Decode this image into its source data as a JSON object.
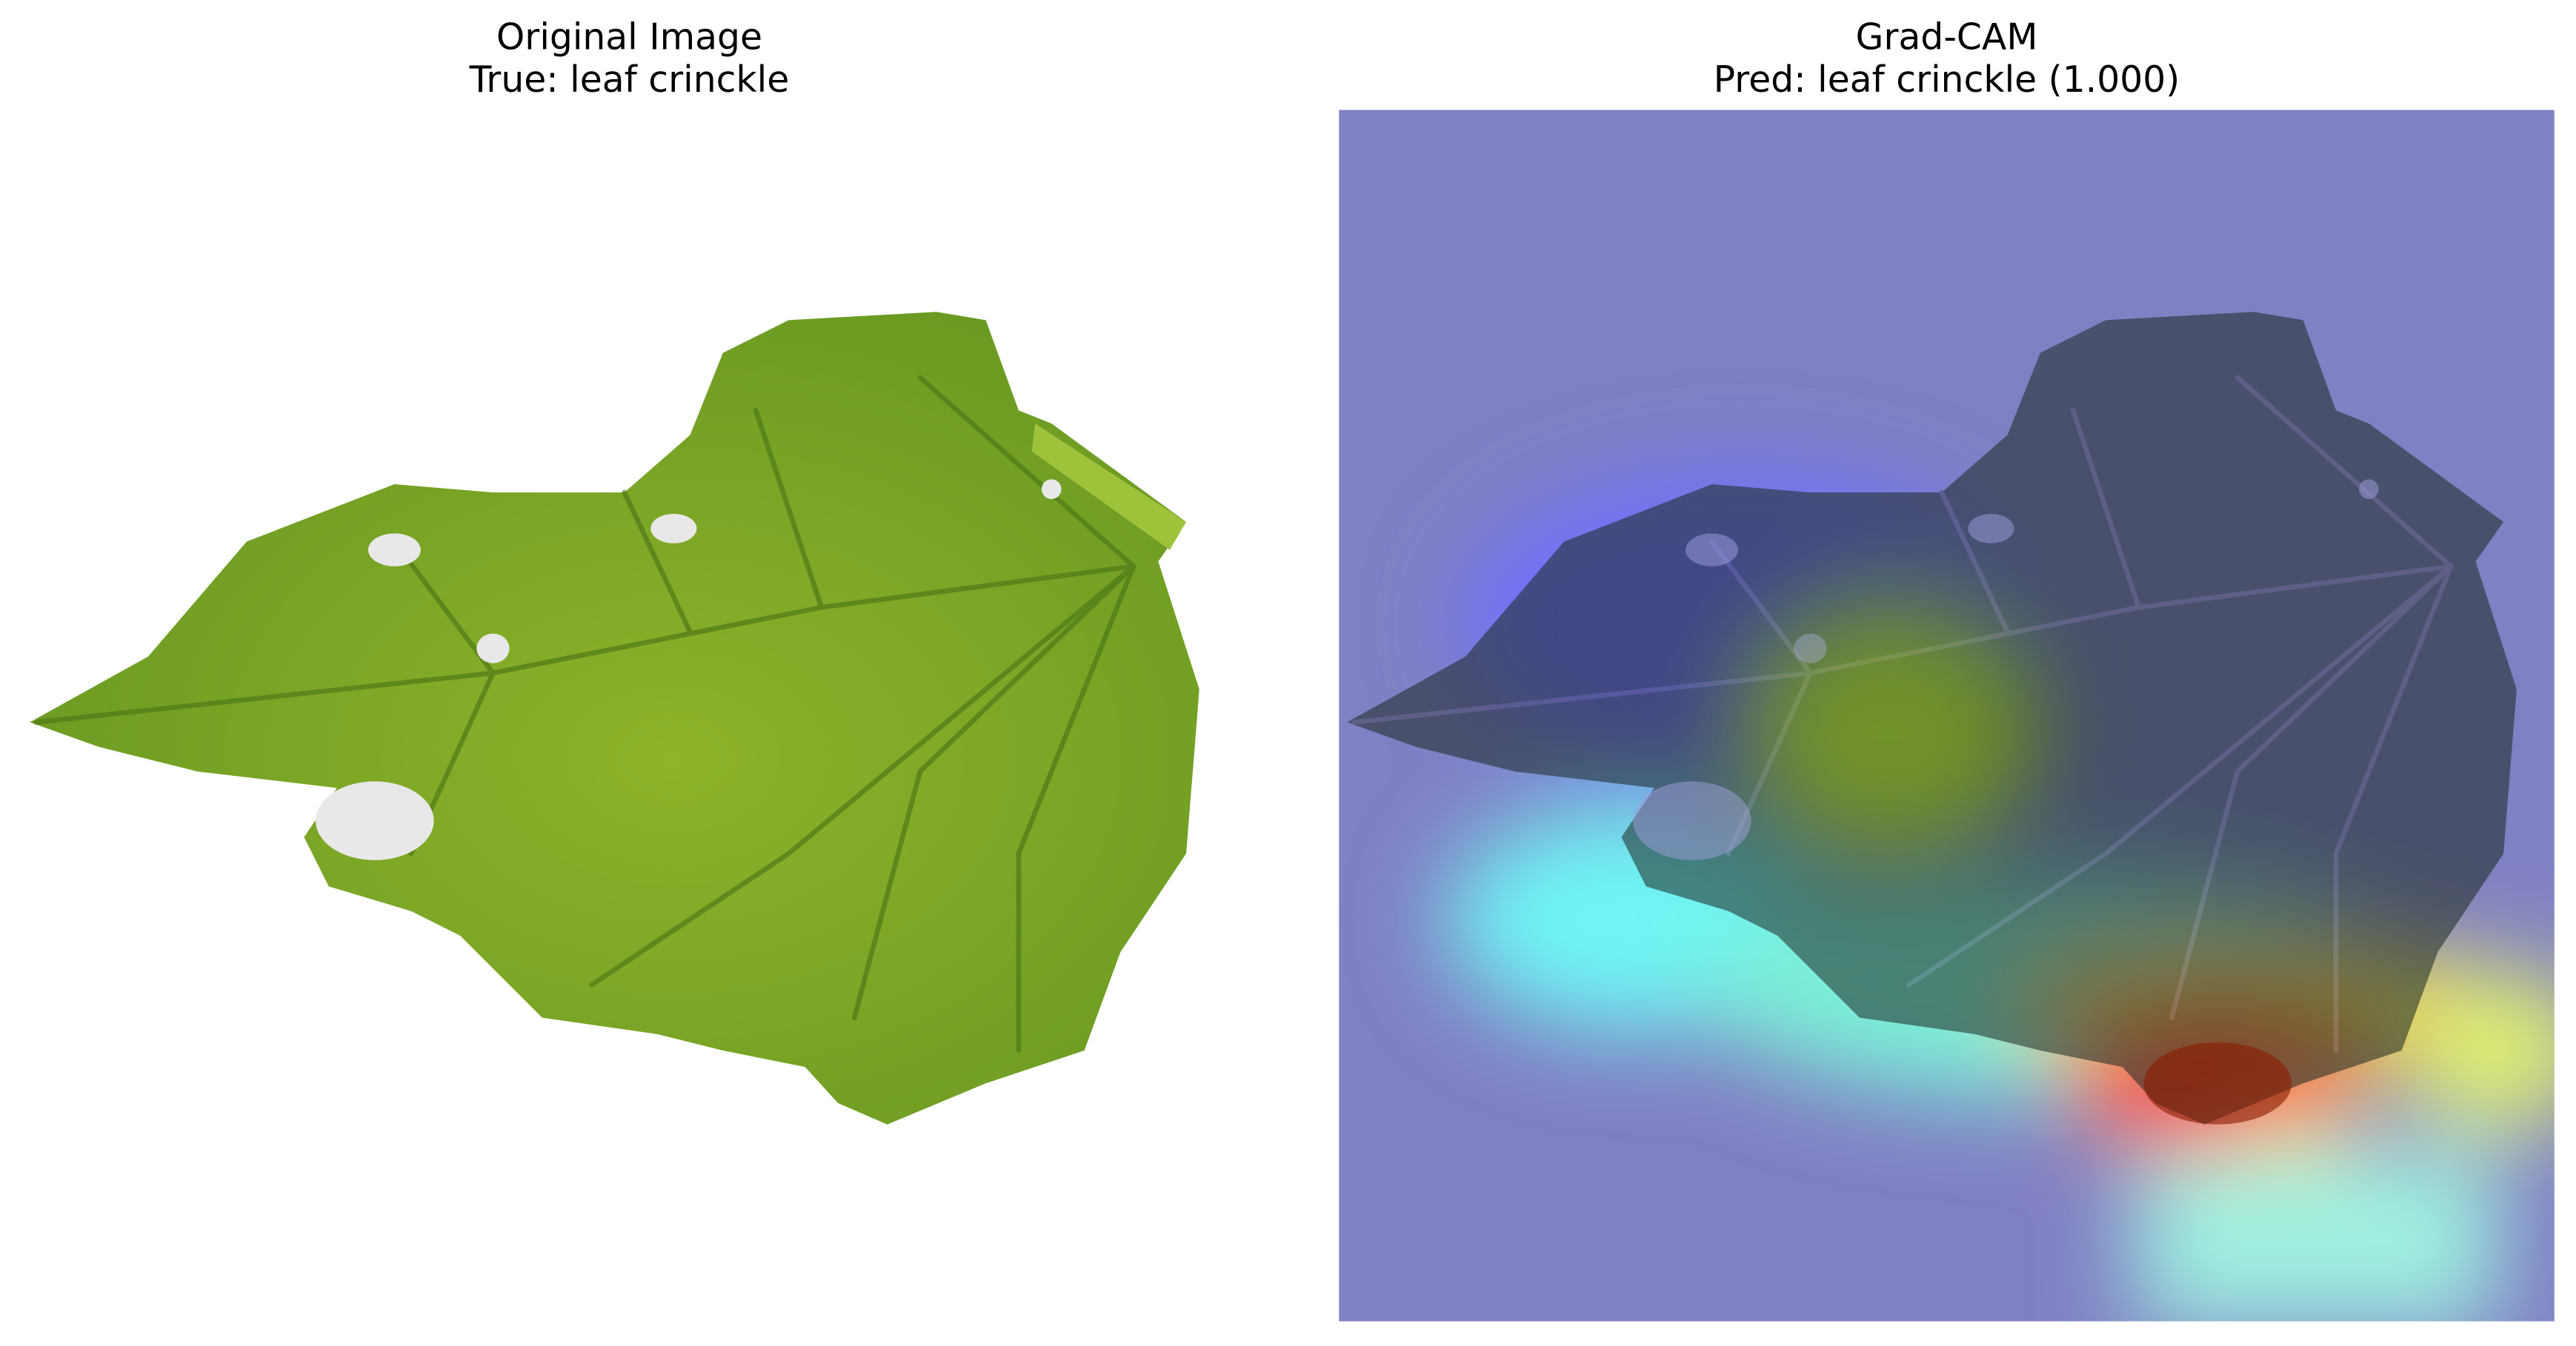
{
  "panels": [
    {
      "title": [
        "Original Image",
        "True: leaf crinckle"
      ]
    },
    {
      "title": [
        "Grad-CAM",
        "Pred: leaf crinckle (1.000)"
      ]
    }
  ]
}
